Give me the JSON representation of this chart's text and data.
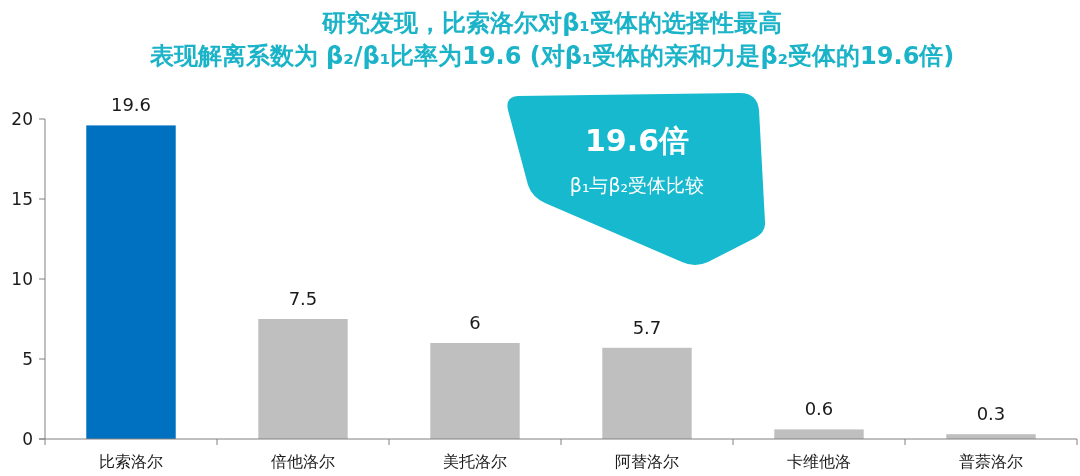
{
  "chart_data": {
    "type": "bar",
    "title": "研究发现，比索洛尔对β₁受体的选择性最高",
    "subtitle": "表现解离系数为 β₂/β₁比率为19.6 (对β₁受体的亲和力是β₂受体的19.6倍)",
    "categories": [
      "比索洛尔",
      "倍他洛尔",
      "美托洛尔",
      "阿替洛尔",
      "卡维他洛",
      "普萘洛尔"
    ],
    "values": [
      19.6,
      7.5,
      6,
      5.7,
      0.6,
      0.3
    ],
    "colors": [
      "#0070c0",
      "#bfbfbf",
      "#bfbfbf",
      "#bfbfbf",
      "#bfbfbf",
      "#bfbfbf"
    ],
    "ylim": [
      0,
      20
    ],
    "yticks": [
      0,
      5,
      10,
      15,
      20
    ],
    "data_labels": true,
    "annotations": [
      "19.6倍",
      "β₁与β₂受体比较"
    ]
  }
}
